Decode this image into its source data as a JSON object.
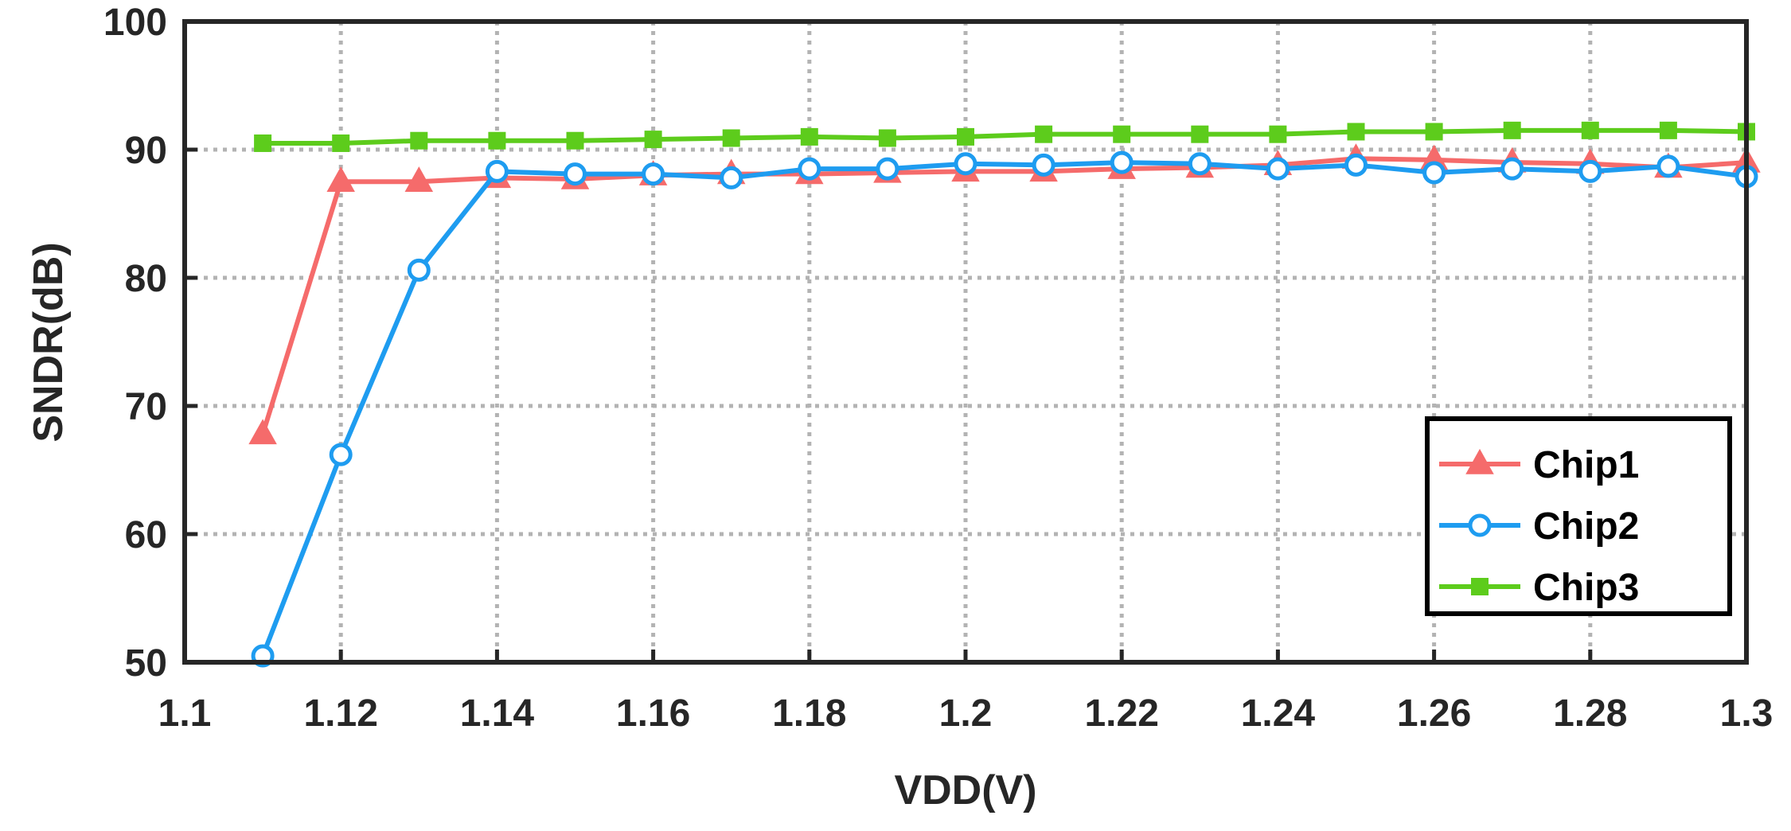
{
  "chart_data": {
    "type": "line",
    "xlabel": "VDD(V)",
    "ylabel": "SNDR(dB)",
    "xlim": [
      1.1,
      1.3
    ],
    "ylim": [
      50,
      100
    ],
    "xticks": [
      1.1,
      1.12,
      1.14,
      1.16,
      1.18,
      1.2,
      1.22,
      1.24,
      1.26,
      1.28,
      1.3
    ],
    "xtick_labels": [
      "1.1",
      "1.12",
      "1.14",
      "1.16",
      "1.18",
      "1.2",
      "1.22",
      "1.24",
      "1.26",
      "1.28",
      "1.3"
    ],
    "yticks": [
      50,
      60,
      70,
      80,
      90,
      100
    ],
    "ytick_labels": [
      "50",
      "60",
      "70",
      "80",
      "90",
      "100"
    ],
    "grid": true,
    "legend_position": "bottom-right",
    "x": [
      1.11,
      1.12,
      1.13,
      1.14,
      1.15,
      1.16,
      1.17,
      1.18,
      1.19,
      1.2,
      1.21,
      1.22,
      1.23,
      1.24,
      1.25,
      1.26,
      1.27,
      1.28,
      1.29,
      1.3
    ],
    "series": [
      {
        "name": "Chip1",
        "color": "#f56b6b",
        "marker": "triangle",
        "values": [
          67.8,
          87.5,
          87.5,
          87.8,
          87.7,
          88.0,
          88.1,
          88.1,
          88.2,
          88.3,
          88.3,
          88.5,
          88.6,
          88.8,
          89.3,
          89.2,
          89.0,
          88.9,
          88.6,
          89.0
        ]
      },
      {
        "name": "Chip2",
        "color": "#1e9cf0",
        "marker": "circle",
        "values": [
          50.5,
          66.2,
          80.6,
          88.3,
          88.1,
          88.1,
          87.8,
          88.5,
          88.5,
          88.9,
          88.8,
          89.0,
          88.9,
          88.5,
          88.8,
          88.2,
          88.5,
          88.3,
          88.7,
          87.9
        ]
      },
      {
        "name": "Chip3",
        "color": "#5dcc1c",
        "marker": "square",
        "values": [
          90.5,
          90.5,
          90.7,
          90.7,
          90.7,
          90.8,
          90.9,
          91.0,
          90.9,
          91.0,
          91.2,
          91.2,
          91.2,
          91.2,
          91.4,
          91.4,
          91.5,
          91.5,
          91.5,
          91.4
        ]
      }
    ]
  }
}
